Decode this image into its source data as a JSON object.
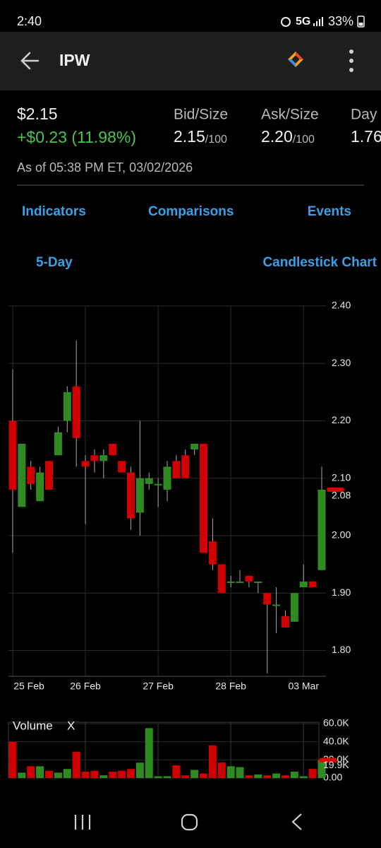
{
  "status": {
    "time": "2:40",
    "network": "5G",
    "battery": "33%"
  },
  "header": {
    "title": "IPW"
  },
  "quote": {
    "price": "$2.15",
    "change": "+$0.23 (11.98%)",
    "bid_label": "Bid/Size",
    "bid": "2.15",
    "bid_size": "/100",
    "ask_label": "Ask/Size",
    "ask": "2.20",
    "ask_size": "/100",
    "day_label": "Day",
    "day": "1.76",
    "as_of": "As of 05:38 PM ET, 03/02/2026"
  },
  "tabs": [
    "Indicators",
    "Comparisons",
    "Events"
  ],
  "range": "5-Day",
  "chart_type": "Candlestick Chart",
  "chart_data": [
    {
      "type": "candlestick",
      "categories": [
        "25 Feb",
        null,
        null,
        null,
        null,
        null,
        null,
        null,
        "26 Feb",
        null,
        null,
        null,
        null,
        null,
        null,
        null,
        "27 Feb",
        null,
        null,
        null,
        null,
        null,
        null,
        null,
        "28 Feb",
        null,
        null,
        null,
        null,
        null,
        null,
        null,
        "03 Mar",
        null,
        null
      ],
      "open": [
        2.2,
        2.05,
        2.12,
        2.06,
        2.13,
        2.14,
        2.2,
        2.26,
        2.13,
        2.14,
        2.13,
        2.16,
        2.13,
        2.11,
        2.04,
        2.09,
        2.09,
        2.08,
        2.13,
        2.14,
        2.15,
        2.16,
        1.99,
        1.95,
        1.92,
        1.92,
        1.93,
        1.92,
        1.9,
        1.88,
        1.86,
        1.85,
        1.91,
        1.92,
        1.94
      ],
      "high": [
        2.29,
        2.16,
        2.13,
        2.12,
        2.13,
        2.19,
        2.26,
        2.34,
        2.14,
        2.15,
        2.15,
        2.16,
        2.13,
        2.12,
        2.2,
        2.11,
        2.1,
        2.13,
        2.14,
        2.15,
        2.16,
        2.16,
        2.03,
        1.95,
        1.93,
        1.94,
        1.93,
        1.92,
        1.9,
        1.91,
        1.87,
        1.9,
        1.95,
        1.92,
        2.12
      ],
      "low": [
        1.97,
        2.05,
        2.08,
        2.06,
        2.08,
        2.14,
        2.18,
        2.12,
        2.02,
        2.11,
        2.1,
        2.14,
        2.11,
        2.01,
        2.0,
        2.08,
        2.05,
        2.06,
        2.1,
        2.1,
        2.14,
        1.97,
        1.94,
        1.9,
        1.91,
        1.92,
        1.91,
        1.9,
        1.76,
        1.83,
        1.84,
        1.85,
        1.91,
        1.91,
        1.94
      ],
      "close": [
        2.08,
        2.16,
        2.09,
        2.11,
        2.08,
        2.18,
        2.25,
        2.17,
        2.12,
        2.13,
        2.14,
        2.14,
        2.11,
        2.03,
        2.1,
        2.1,
        2.09,
        2.12,
        2.1,
        2.1,
        2.16,
        1.97,
        1.95,
        1.9,
        1.92,
        1.92,
        1.92,
        1.92,
        1.88,
        1.88,
        1.84,
        1.9,
        1.92,
        1.91,
        2.08
      ],
      "up_color": "#2f8a22",
      "down_color": "#d10000",
      "ylim": [
        1.755,
        2.4
      ],
      "yticks": [
        {
          "value": 1.8,
          "label": "1.80"
        },
        {
          "value": 1.9,
          "label": "1.90"
        },
        {
          "value": 2.0,
          "label": "2.00"
        },
        {
          "value": 2.1,
          "label": "2.10"
        },
        {
          "value": 2.2,
          "label": "2.20"
        },
        {
          "value": 2.3,
          "label": "2.30"
        },
        {
          "value": 2.4,
          "label": "2.40"
        }
      ],
      "last_price": {
        "value": 2.08,
        "label": "2.08"
      },
      "grid": true
    },
    {
      "type": "bar",
      "title": "Volume",
      "close_button": "X",
      "values": [
        40,
        6,
        13,
        13,
        8,
        6,
        10,
        29,
        7,
        8,
        3,
        7,
        8,
        10,
        17,
        55,
        2,
        2,
        14,
        3,
        9,
        5,
        36,
        17,
        13,
        12,
        3,
        4,
        3,
        5,
        3,
        7,
        2,
        10,
        20
      ],
      "ylim": [
        0,
        60
      ],
      "yticks": [
        {
          "value": 0,
          "label": "0.00"
        },
        {
          "value": 20,
          "label": "20.0K"
        },
        {
          "value": 40,
          "label": "40.0K"
        },
        {
          "value": 60,
          "label": "60.0K"
        }
      ],
      "last_volume": {
        "value": 19.9,
        "label": "19.9K"
      },
      "grid": true
    }
  ]
}
